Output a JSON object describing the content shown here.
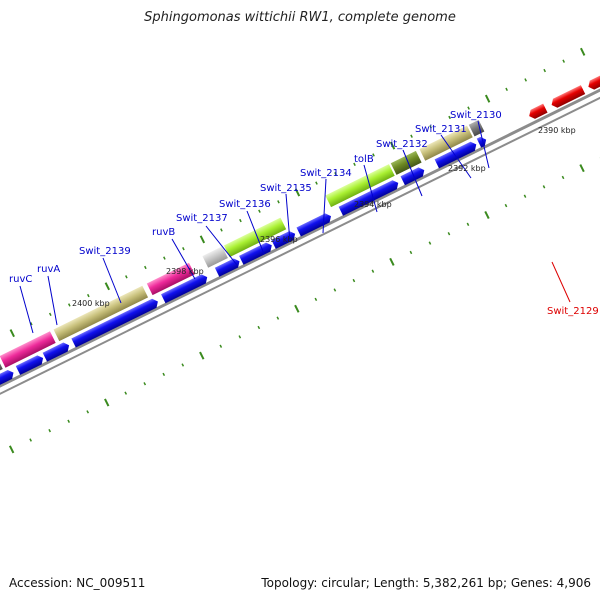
{
  "title": "Sphingomonas wittichii RW1, complete genome",
  "footer": {
    "accession_label": "Accession:",
    "accession": "NC_009511",
    "topology_label": "Topology:",
    "topology": "circular",
    "length_label": "Length:",
    "length": "5,382,261 bp",
    "genes_label": "Genes:",
    "genes": "4,906"
  },
  "colors": {
    "background": "#ffffff",
    "backbone": "#8c8c8c",
    "ticks": "#3a8a1e",
    "forward_label": "#0000cc",
    "reverse_label": "#dd0000",
    "cds_forward": "#0a0ae6",
    "cds_reverse": "#e60000",
    "gene_pink": "#ee2a9a",
    "gene_olive": "#c7bf7a",
    "gene_lime": "#a9f032",
    "gene_darkolive": "#6e8a24",
    "gene_gray": "#7a7a7a",
    "gene_lightgray": "#c8c8c8"
  },
  "scale_labels": [
    "2390 kbp",
    "2392 kbp",
    "2394 kbp",
    "2396 kbp",
    "2398 kbp",
    "2400 kbp"
  ],
  "gene_labels_forward": [
    "ruvC",
    "ruvA",
    "Swit_2139",
    "ruvB",
    "Swit_2137",
    "Swit_2136",
    "Swit_2135",
    "Swit_2134",
    "tolB",
    "Swit_2132",
    "Swit_2131",
    "Swit_2130"
  ],
  "gene_labels_reverse": [
    "Swit_2129"
  ]
}
